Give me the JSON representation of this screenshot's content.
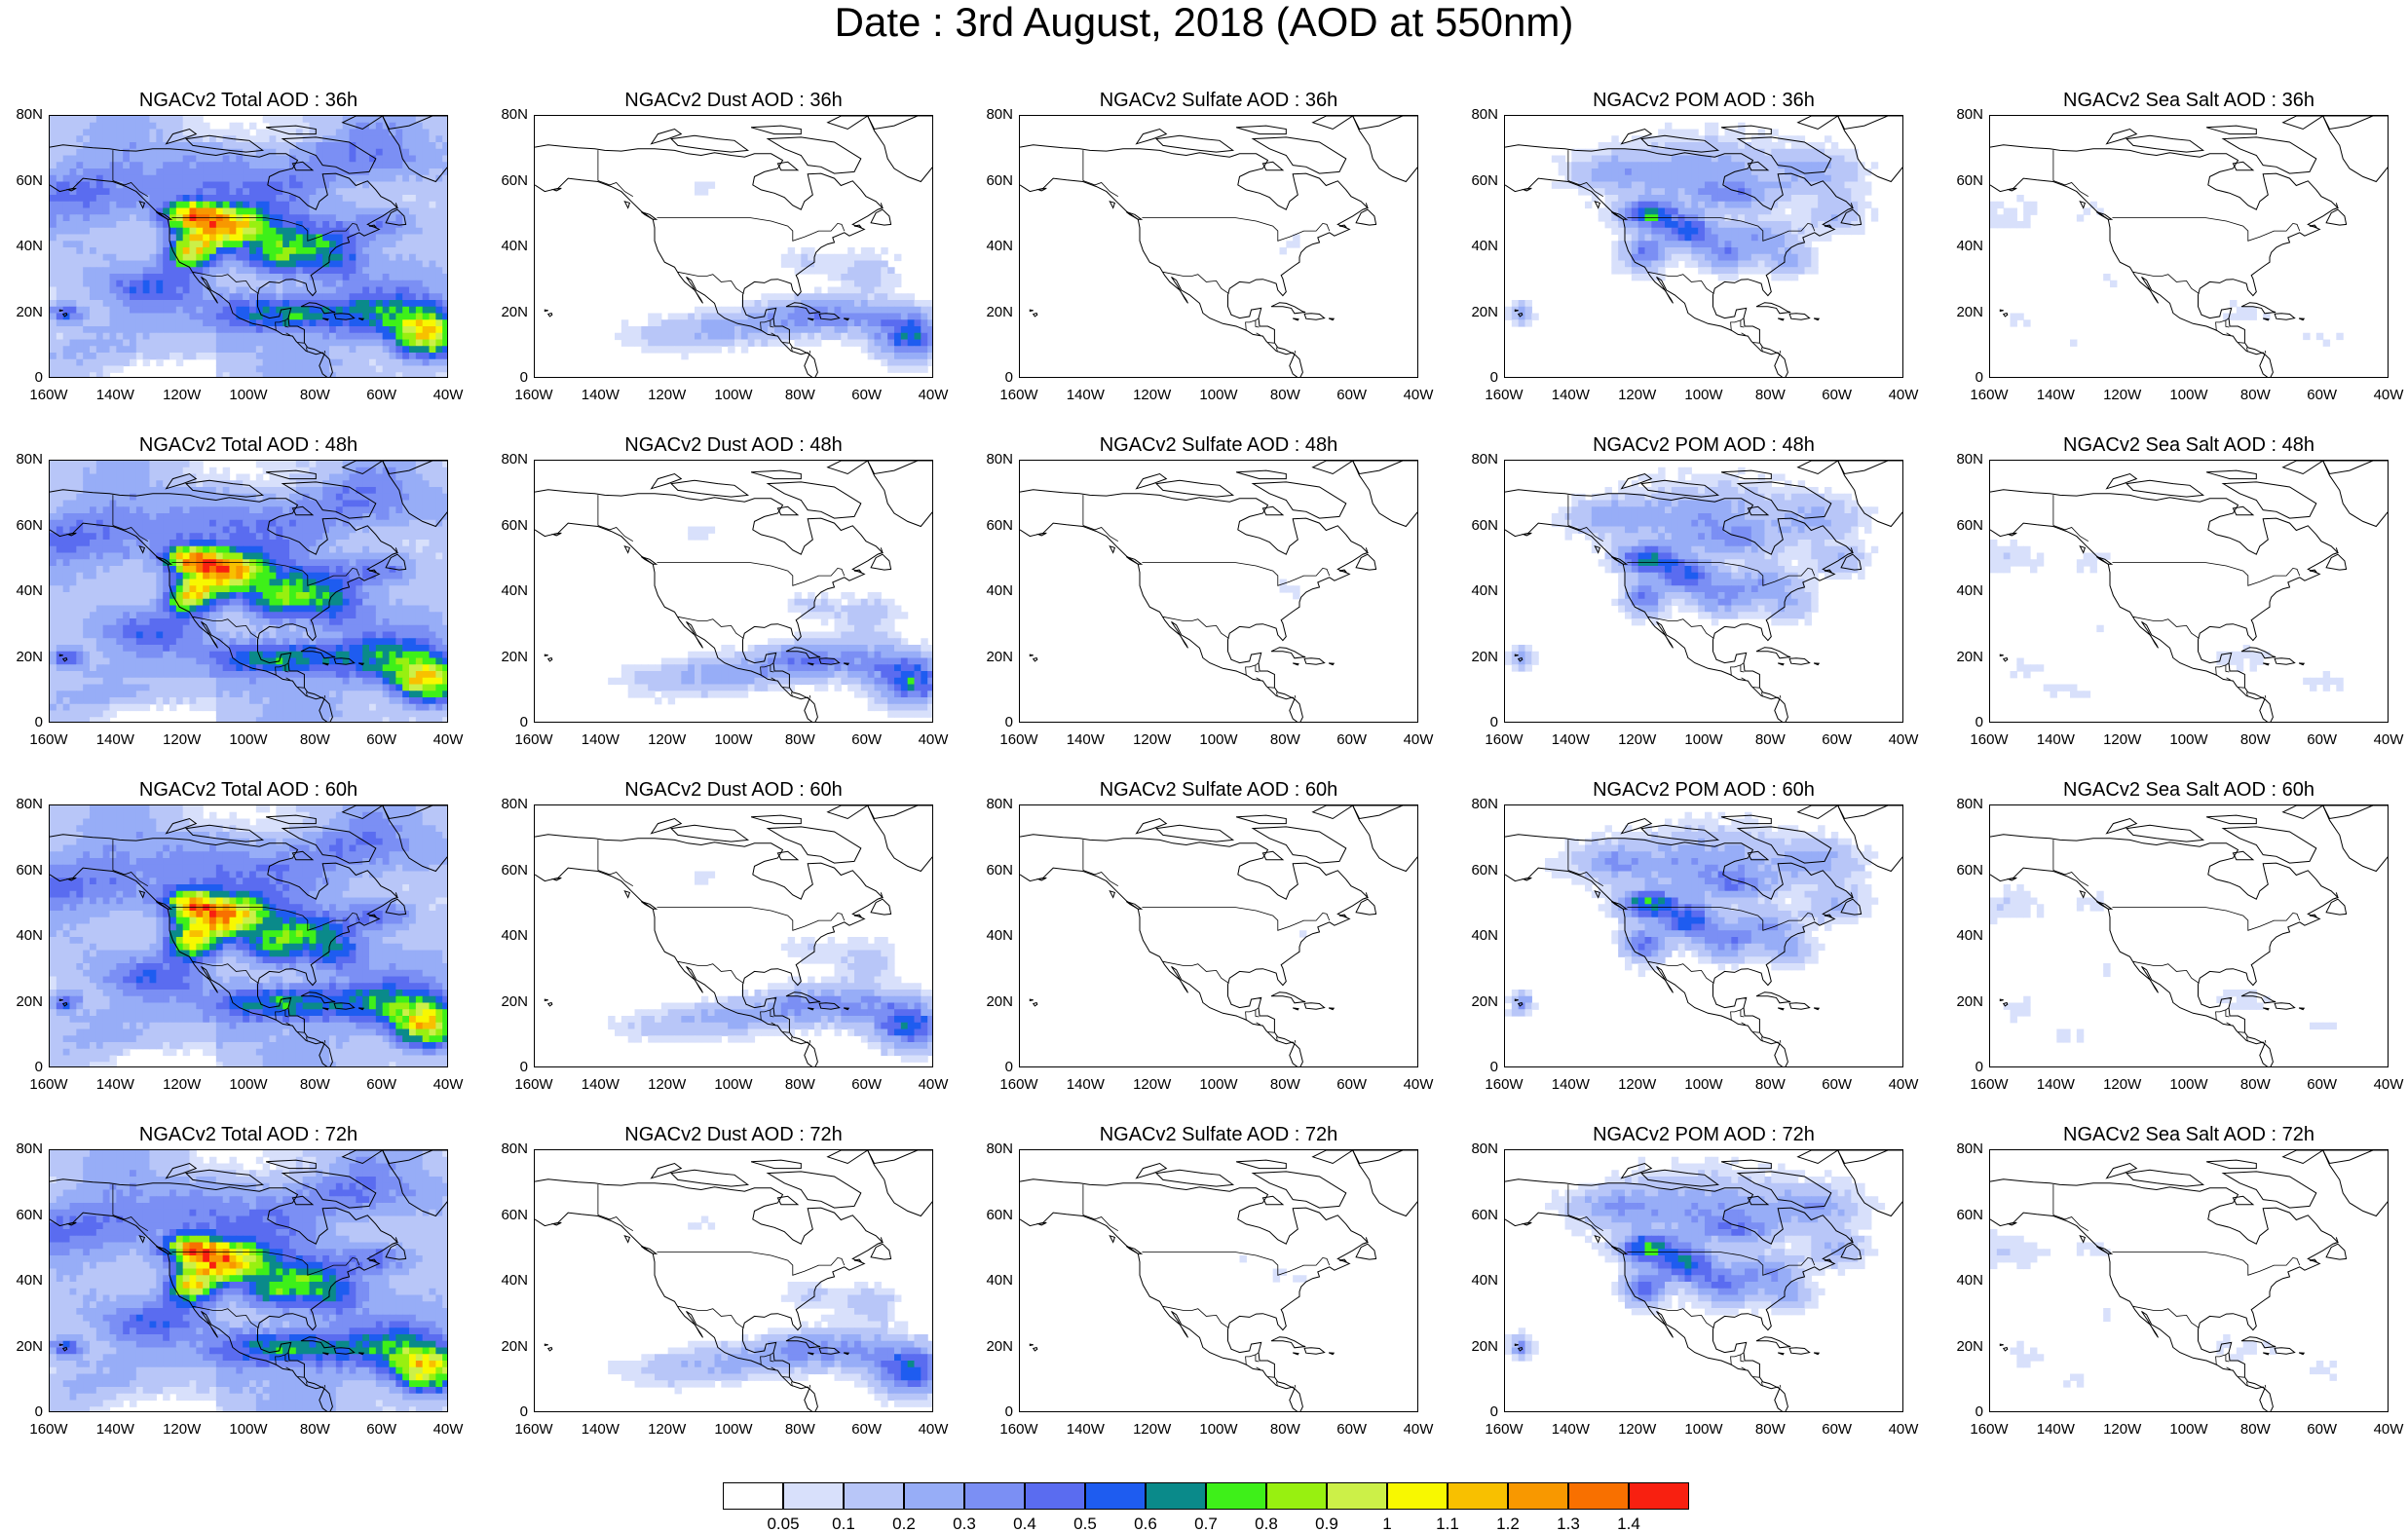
{
  "title": "Date : 3rd August, 2018 (AOD at 550nm)",
  "latitude_labels": [
    "80N",
    "60N",
    "40N",
    "20N",
    "0"
  ],
  "longitude_labels": [
    "160W",
    "140W",
    "120W",
    "100W",
    "80W",
    "60W",
    "40W"
  ],
  "panels": [
    [
      {
        "title": "NGACv2 Total AOD : 36h",
        "species": "total",
        "intensity": 1.0
      },
      {
        "title": "NGACv2 Dust AOD : 36h",
        "species": "dust",
        "intensity": 0.6
      },
      {
        "title": "NGACv2 Sulfate AOD : 36h",
        "species": "sulfate",
        "intensity": 0.15
      },
      {
        "title": "NGACv2 POM AOD : 36h",
        "species": "pom",
        "intensity": 0.7
      },
      {
        "title": "NGACv2 Sea Salt AOD : 36h",
        "species": "seasalt",
        "intensity": 0.25
      }
    ],
    [
      {
        "title": "NGACv2 Total AOD : 48h",
        "species": "total",
        "intensity": 1.0
      },
      {
        "title": "NGACv2 Dust AOD : 48h",
        "species": "dust",
        "intensity": 0.65
      },
      {
        "title": "NGACv2 Sulfate AOD : 48h",
        "species": "sulfate",
        "intensity": 0.15
      },
      {
        "title": "NGACv2 POM AOD : 48h",
        "species": "pom",
        "intensity": 0.7
      },
      {
        "title": "NGACv2 Sea Salt AOD : 48h",
        "species": "seasalt",
        "intensity": 0.3
      }
    ],
    [
      {
        "title": "NGACv2 Total AOD : 60h",
        "species": "total",
        "intensity": 1.0
      },
      {
        "title": "NGACv2 Dust AOD : 60h",
        "species": "dust",
        "intensity": 0.6
      },
      {
        "title": "NGACv2 Sulfate AOD : 60h",
        "species": "sulfate",
        "intensity": 0.15
      },
      {
        "title": "NGACv2 POM AOD : 60h",
        "species": "pom",
        "intensity": 0.75
      },
      {
        "title": "NGACv2 Sea Salt AOD : 60h",
        "species": "seasalt",
        "intensity": 0.3
      }
    ],
    [
      {
        "title": "NGACv2 Total AOD : 72h",
        "species": "total",
        "intensity": 1.0
      },
      {
        "title": "NGACv2 Dust AOD : 72h",
        "species": "dust",
        "intensity": 0.6
      },
      {
        "title": "NGACv2 Sulfate AOD : 72h",
        "species": "sulfate",
        "intensity": 0.2
      },
      {
        "title": "NGACv2 POM AOD : 72h",
        "species": "pom",
        "intensity": 0.8
      },
      {
        "title": "NGACv2 Sea Salt  AOD : 72h",
        "species": "seasalt",
        "intensity": 0.3
      }
    ]
  ],
  "colorbar": {
    "colors": [
      "#ffffff",
      "#d8e0fb",
      "#b8c6f8",
      "#97adf7",
      "#7b8ff4",
      "#5a6cf0",
      "#1e5cf0",
      "#0a8a8a",
      "#3ef019",
      "#98f010",
      "#ccf048",
      "#f8f800",
      "#f8c000",
      "#f89800",
      "#f87000",
      "#f82010"
    ],
    "labels": [
      "0.05",
      "0.1",
      "0.2",
      "0.3",
      "0.4",
      "0.5",
      "0.6",
      "0.7",
      "0.8",
      "0.9",
      "1",
      "1.1",
      "1.2",
      "1.3",
      "1.4"
    ]
  }
}
